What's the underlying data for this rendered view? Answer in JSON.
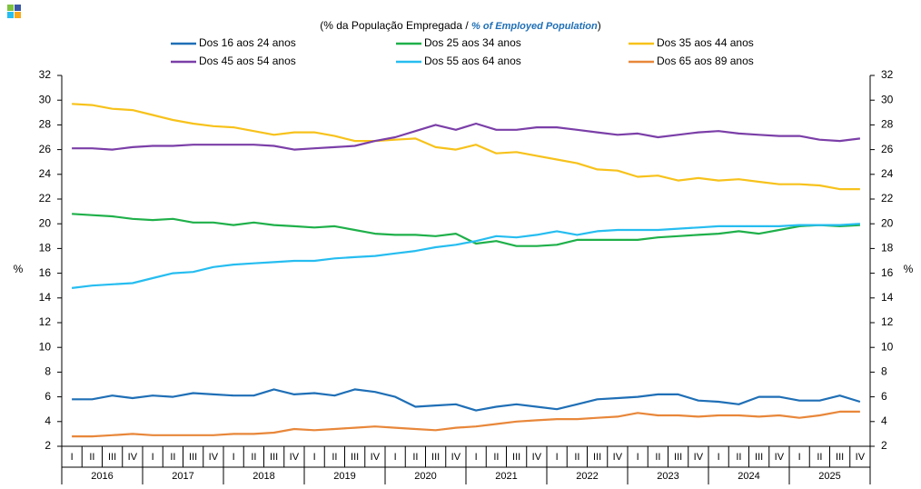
{
  "chart_data": {
    "type": "line",
    "subtitle": {
      "before": "(% da População Empregada / ",
      "emphasis": "% of Employed Population",
      "after": ")"
    },
    "categories": [
      "I",
      "II",
      "III",
      "IV",
      "I",
      "II",
      "III",
      "IV",
      "I",
      "II",
      "III",
      "IV",
      "I",
      "II",
      "III",
      "IV",
      "I",
      "II",
      "III",
      "IV",
      "I",
      "II",
      "III",
      "IV",
      "I",
      "II",
      "III",
      "IV",
      "I",
      "II",
      "III",
      "IV",
      "I",
      "II",
      "III",
      "IV",
      "I",
      "II",
      "III",
      "IV"
    ],
    "years": [
      "2016",
      "2017",
      "2018",
      "2019",
      "2020",
      "2021",
      "2022",
      "2023",
      "2024",
      "2025"
    ],
    "y_label": "%",
    "y2_label": "%",
    "ylim": [
      2,
      32
    ],
    "yticks": [
      2,
      4,
      6,
      8,
      10,
      12,
      14,
      16,
      18,
      20,
      22,
      24,
      26,
      28,
      30,
      32
    ],
    "y2lim": [
      2,
      32
    ],
    "y2ticks": [
      2,
      4,
      6,
      8,
      10,
      12,
      14,
      16,
      18,
      20,
      22,
      24,
      26,
      28,
      30,
      32
    ],
    "series": [
      {
        "name": "Dos 16 aos 24 anos",
        "color": "#1f6fb6",
        "values": [
          5.8,
          5.8,
          6.1,
          5.9,
          6.1,
          6.0,
          6.3,
          6.2,
          6.1,
          6.1,
          6.6,
          6.2,
          6.3,
          6.1,
          6.6,
          6.4,
          6.0,
          5.2,
          5.3,
          5.4,
          4.9,
          5.2,
          5.4,
          5.2,
          5.0,
          5.4,
          5.8,
          5.9,
          6.0,
          6.2,
          6.2,
          5.7,
          5.6,
          5.4,
          6.0,
          6.0,
          5.7,
          5.7,
          6.1,
          5.6
        ]
      },
      {
        "name": "Dos 25 aos 34 anos",
        "color": "#1fb04a",
        "values": [
          20.8,
          20.7,
          20.6,
          20.4,
          20.3,
          20.4,
          20.1,
          20.1,
          19.9,
          20.1,
          19.9,
          19.8,
          19.7,
          19.8,
          19.5,
          19.2,
          19.1,
          19.1,
          19.0,
          19.2,
          18.4,
          18.6,
          18.2,
          18.2,
          18.3,
          18.7,
          18.7,
          18.7,
          18.7,
          18.9,
          19.0,
          19.1,
          19.2,
          19.4,
          19.2,
          19.5,
          19.8,
          19.9,
          19.8,
          19.9
        ]
      },
      {
        "name": "Dos 35 aos 44 anos",
        "color": "#f7c21b",
        "values": [
          29.7,
          29.6,
          29.3,
          29.2,
          28.8,
          28.4,
          28.1,
          27.9,
          27.8,
          27.5,
          27.2,
          27.4,
          27.4,
          27.1,
          26.7,
          26.7,
          26.8,
          26.9,
          26.2,
          26.0,
          26.4,
          25.7,
          25.8,
          25.5,
          25.2,
          24.9,
          24.4,
          24.3,
          23.8,
          23.9,
          23.5,
          23.7,
          23.5,
          23.6,
          23.4,
          23.2,
          23.2,
          23.1,
          22.8,
          22.8
        ]
      },
      {
        "name": "Dos 45 aos 54 anos",
        "color": "#7b3fa8",
        "values": [
          26.1,
          26.1,
          26.0,
          26.2,
          26.3,
          26.3,
          26.4,
          26.4,
          26.4,
          26.4,
          26.3,
          26.0,
          26.1,
          26.2,
          26.3,
          26.7,
          27.0,
          27.5,
          28.0,
          27.6,
          28.1,
          27.6,
          27.6,
          27.8,
          27.8,
          27.6,
          27.4,
          27.2,
          27.3,
          27.0,
          27.2,
          27.4,
          27.5,
          27.3,
          27.2,
          27.1,
          27.1,
          26.8,
          26.7,
          26.9
        ]
      },
      {
        "name": "Dos 55 aos 64 anos",
        "color": "#26bdf0",
        "values": [
          14.8,
          15.0,
          15.1,
          15.2,
          15.6,
          16.0,
          16.1,
          16.5,
          16.7,
          16.8,
          16.9,
          17.0,
          17.0,
          17.2,
          17.3,
          17.4,
          17.6,
          17.8,
          18.1,
          18.3,
          18.6,
          19.0,
          18.9,
          19.1,
          19.4,
          19.1,
          19.4,
          19.5,
          19.5,
          19.5,
          19.6,
          19.7,
          19.8,
          19.8,
          19.8,
          19.8,
          19.9,
          19.9,
          19.9,
          20.0
        ]
      },
      {
        "name": "Dos 65 aos 89 anos",
        "color": "#e8873a",
        "values": [
          2.8,
          2.8,
          2.9,
          3.0,
          2.9,
          2.9,
          2.9,
          2.9,
          3.0,
          3.0,
          3.1,
          3.4,
          3.3,
          3.4,
          3.5,
          3.6,
          3.5,
          3.4,
          3.3,
          3.5,
          3.6,
          3.8,
          4.0,
          4.1,
          4.2,
          4.2,
          4.3,
          4.4,
          4.7,
          4.5,
          4.5,
          4.4,
          4.5,
          4.5,
          4.4,
          4.5,
          4.3,
          4.5,
          4.8,
          4.8
        ]
      }
    ]
  }
}
